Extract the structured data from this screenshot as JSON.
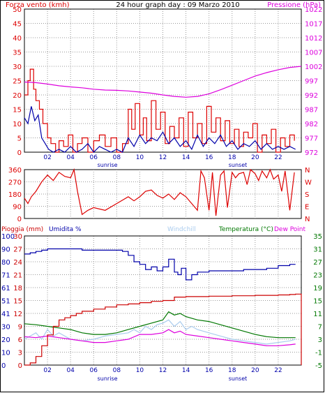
{
  "header": {
    "wind_title": "Forza vento (kmh)",
    "main_title": "24 hour graph day : 09 Marzo 2010",
    "pressure_title": "Pressione (hPa)"
  },
  "bottom_titles": {
    "rain": "Pioggia (mm)",
    "humidity": "Umidita %",
    "windchill": "Windchill",
    "temperature": "Temperatura (°C)",
    "dewpoint": "Dew Point"
  },
  "markers": {
    "sunrise": "sunrise",
    "sunset": "sunset"
  },
  "colors": {
    "wind": "#dd0000",
    "gust": "#dd0000",
    "avgwind": "#0000aa",
    "pressure": "#dd00dd",
    "direction": "#dd0000",
    "humidity": "#0000aa",
    "rain": "#cc0000",
    "temperature": "#007700",
    "dewpoint": "#dd00dd",
    "windchill": "#aaccee",
    "grid": "#999999",
    "border": "#000000"
  },
  "chart_data": [
    {
      "type": "line",
      "x_ticks": [
        "02",
        "04",
        "06",
        "08",
        "10",
        "12",
        "14",
        "16",
        "18",
        "20",
        "22"
      ],
      "xlim": [
        0,
        24
      ],
      "left_axis": {
        "label": "Forza vento (kmh)",
        "lim": [
          0,
          50
        ],
        "ticks": [
          "0",
          "5",
          "10",
          "15",
          "20",
          "25",
          "30",
          "35",
          "40",
          "45",
          "50"
        ]
      },
      "right_axis": {
        "label": "Pressione (hPa)",
        "lim": [
          972,
          1022
        ],
        "ticks": [
          "972",
          "977",
          "982",
          "987",
          "992",
          "997",
          "1002",
          "1007",
          "1012",
          "1017",
          "1022"
        ]
      },
      "series": [
        {
          "name": "Forza vento (kmh)",
          "axis": "left",
          "style": "step",
          "x": [
            0,
            0.3,
            0.5,
            0.8,
            1,
            1.3,
            1.6,
            2,
            2.3,
            2.7,
            3,
            3.4,
            3.8,
            4.2,
            4.6,
            5,
            5.5,
            6,
            6.5,
            7,
            7.5,
            8,
            8.5,
            9,
            9.3,
            9.6,
            10,
            10.3,
            10.6,
            11,
            11.4,
            11.8,
            12.2,
            12.6,
            13,
            13.4,
            13.8,
            14.2,
            14.6,
            15,
            15.4,
            15.8,
            16.2,
            16.6,
            17,
            17.4,
            17.8,
            18.2,
            18.6,
            19,
            19.4,
            19.8,
            20.2,
            20.6,
            21,
            21.4,
            21.8,
            22.2,
            22.6,
            23,
            23.4
          ],
          "y": [
            20,
            25,
            29,
            22,
            18,
            15,
            10,
            5,
            3,
            0,
            4,
            2,
            6,
            0,
            3,
            5,
            0,
            4,
            6,
            2,
            5,
            0,
            3,
            15,
            8,
            17,
            6,
            12,
            4,
            18,
            8,
            14,
            3,
            9,
            5,
            12,
            2,
            14,
            5,
            10,
            3,
            16,
            7,
            12,
            4,
            11,
            3,
            8,
            2,
            7,
            5,
            10,
            0,
            6,
            3,
            8,
            0,
            5,
            2,
            6,
            4
          ]
        },
        {
          "name": "Wind avg",
          "axis": "left",
          "style": "line",
          "x": [
            0,
            0.3,
            0.6,
            0.9,
            1.2,
            1.5,
            1.8,
            2.1,
            2.5,
            3,
            3.5,
            4,
            4.5,
            5,
            5.5,
            6,
            6.5,
            7,
            7.5,
            8,
            8.5,
            9,
            9.5,
            10,
            10.5,
            11,
            11.5,
            12,
            12.5,
            13,
            13.5,
            14,
            14.5,
            15,
            15.5,
            16,
            16.5,
            17,
            17.5,
            18,
            18.5,
            19,
            19.5,
            20,
            20.5,
            21,
            21.5,
            22,
            22.5,
            23,
            23.5
          ],
          "y": [
            12,
            10,
            16,
            11,
            13,
            5,
            3,
            1,
            0,
            1,
            0,
            2,
            0,
            1,
            3,
            0,
            2,
            1,
            0,
            1,
            0,
            5,
            2,
            6,
            3,
            5,
            4,
            7,
            3,
            5,
            2,
            4,
            1,
            6,
            2,
            5,
            3,
            6,
            2,
            4,
            1,
            3,
            2,
            4,
            1,
            3,
            1,
            2,
            1,
            2,
            1
          ]
        },
        {
          "name": "Pressione (hPa)",
          "axis": "right",
          "style": "line",
          "x": [
            0,
            1,
            2,
            3,
            4,
            5,
            6,
            7,
            8,
            9,
            10,
            11,
            12,
            13,
            14,
            15,
            16,
            17,
            18,
            19,
            20,
            21,
            22,
            23,
            24
          ],
          "y": [
            996.5,
            996.3,
            995.8,
            995.2,
            994.8,
            994.5,
            994.0,
            993.7,
            993.6,
            993.4,
            993.0,
            992.6,
            992.0,
            991.5,
            991.2,
            991.5,
            992.4,
            993.8,
            995.4,
            997.0,
            998.6,
            999.8,
            1000.8,
            1001.6,
            1002.0
          ]
        }
      ]
    },
    {
      "type": "line",
      "x_ticks": [
        "02",
        "04",
        "06",
        "08",
        "10",
        "12",
        "14",
        "16",
        "18",
        "20",
        "22"
      ],
      "xlim": [
        0,
        24
      ],
      "left_axis": {
        "lim": [
          0,
          360
        ],
        "ticks": [
          "0",
          "90",
          "180",
          "270",
          "360"
        ]
      },
      "right_axis": {
        "ticks": [
          "N",
          "E",
          "S",
          "W",
          "N"
        ]
      },
      "series": [
        {
          "name": "Direzione vento",
          "axis": "left",
          "style": "line",
          "x": [
            0,
            0.3,
            0.6,
            1,
            1.5,
            2,
            2.5,
            3,
            3.5,
            4,
            4.3,
            4.6,
            5,
            5.5,
            6,
            7,
            8,
            9,
            9.5,
            10,
            10.5,
            11,
            11.5,
            12,
            12.5,
            13,
            13.5,
            14,
            14.5,
            15,
            15.3,
            15.6,
            16,
            16.3,
            16.6,
            17,
            17.3,
            17.6,
            18,
            18.3,
            18.6,
            19,
            19.3,
            19.6,
            20,
            20.3,
            20.6,
            21,
            21.3,
            21.6,
            22,
            22.3,
            22.6,
            23,
            23.4
          ],
          "y": [
            150,
            110,
            160,
            200,
            270,
            320,
            280,
            340,
            310,
            300,
            360,
            200,
            30,
            60,
            80,
            60,
            110,
            160,
            130,
            160,
            200,
            210,
            170,
            150,
            180,
            140,
            190,
            160,
            110,
            60,
            350,
            300,
            60,
            340,
            20,
            320,
            350,
            80,
            340,
            300,
            330,
            340,
            250,
            360,
            330,
            280,
            350,
            300,
            360,
            290,
            320,
            200,
            350,
            60,
            340
          ]
        }
      ]
    },
    {
      "type": "line",
      "x_ticks": [
        "02",
        "04",
        "06",
        "08",
        "10",
        "12",
        "14",
        "16",
        "18",
        "20",
        "22"
      ],
      "xlim": [
        0,
        24
      ],
      "axis_rain": {
        "label": "Pioggia (mm)",
        "lim": [
          0,
          30
        ],
        "ticks": [
          "0",
          "3",
          "6",
          "9",
          "12",
          "15",
          "18",
          "21",
          "24",
          "27",
          "30"
        ]
      },
      "axis_humidity": {
        "label": "Umidita %",
        "lim": [
          0,
          100
        ],
        "ticks": [
          "0",
          "10",
          "20",
          "30",
          "41",
          "51",
          "61",
          "71",
          "80",
          "90",
          "100"
        ]
      },
      "axis_temp": {
        "label": "Temperatura (°C)",
        "lim": [
          -5,
          35
        ],
        "ticks": [
          "-5",
          "-1",
          "3",
          "7",
          "11",
          "15",
          "19",
          "23",
          "27",
          "31",
          "35"
        ]
      },
      "series": [
        {
          "name": "Umidita %",
          "axis": "humidity",
          "style": "step",
          "x": [
            0,
            0.5,
            1,
            1.5,
            2,
            3,
            4,
            5,
            6,
            7,
            8,
            8.5,
            9,
            9.5,
            10,
            10.5,
            11,
            11.5,
            12,
            12.5,
            13,
            13.3,
            13.6,
            14,
            14.5,
            15,
            16,
            17,
            18,
            19,
            20,
            21,
            22,
            23,
            23.5
          ],
          "y": [
            86,
            87,
            88,
            89,
            90,
            90,
            90,
            89,
            89,
            89,
            89,
            88,
            85,
            80,
            78,
            74,
            76,
            73,
            76,
            82,
            72,
            70,
            75,
            66,
            70,
            72,
            73,
            73,
            73,
            74,
            74,
            75,
            77,
            78,
            78
          ]
        },
        {
          "name": "Pioggia (mm)",
          "axis": "rain",
          "style": "step",
          "x": [
            0,
            0.5,
            1,
            1.5,
            2,
            2.5,
            3,
            3.5,
            4,
            4.5,
            5,
            6,
            7,
            8,
            9,
            10,
            11,
            12,
            13,
            14,
            16,
            18,
            20,
            22,
            23,
            23.5,
            23.9,
            24
          ],
          "y": [
            0,
            0.5,
            2,
            4.5,
            7,
            9,
            10.5,
            11,
            11.5,
            12,
            12.5,
            13,
            13.5,
            14,
            14.2,
            14.5,
            14.8,
            15,
            15.8,
            15.9,
            16,
            16.1,
            16.2,
            16.3,
            16.4,
            16.5,
            16.5,
            0
          ]
        },
        {
          "name": "Temperatura (°C)",
          "axis": "temp",
          "style": "line",
          "x": [
            0,
            1,
            2,
            3,
            4,
            5,
            6,
            7,
            8,
            9,
            10,
            11,
            12,
            12.5,
            13,
            13.5,
            14,
            15,
            16,
            17,
            18,
            19,
            20,
            21,
            22,
            23,
            23.5
          ],
          "y": [
            7.8,
            7.5,
            7,
            6.5,
            6,
            5,
            4.5,
            4.5,
            5,
            6,
            7,
            8,
            9,
            11.5,
            10.5,
            11,
            10,
            9,
            8.5,
            7.5,
            6.5,
            5.5,
            4.5,
            3.8,
            3.5,
            3.5,
            3.5
          ]
        },
        {
          "name": "Dew Point",
          "axis": "temp",
          "style": "line",
          "x": [
            0,
            1,
            2,
            3,
            4,
            5,
            6,
            7,
            8,
            9,
            10,
            11,
            12,
            12.5,
            13,
            13.5,
            14,
            15,
            16,
            17,
            18,
            19,
            20,
            21,
            22,
            23,
            23.5
          ],
          "y": [
            3.8,
            3.5,
            4,
            3.5,
            3,
            2.5,
            2,
            2,
            2.5,
            3,
            4.5,
            4.5,
            5,
            6,
            5,
            5.5,
            4.5,
            4,
            3.5,
            3,
            2.5,
            2,
            1.5,
            1,
            1,
            1.3,
            1.5
          ]
        },
        {
          "name": "Windchill",
          "axis": "temp",
          "style": "line",
          "x": [
            0,
            0.5,
            1,
            1.5,
            2,
            2.5,
            3,
            4,
            5,
            6,
            7,
            8,
            9,
            9.5,
            10,
            10.5,
            11,
            11.5,
            12,
            12.5,
            13,
            13.5,
            14,
            14.5,
            15,
            16,
            17,
            18,
            19,
            20,
            21,
            22,
            23,
            23.5
          ],
          "y": [
            3,
            4,
            5,
            3,
            6,
            4,
            5,
            3,
            2.5,
            3,
            4,
            4.5,
            5,
            6,
            5,
            7,
            6,
            7.5,
            8,
            9,
            7,
            8.5,
            6,
            7,
            6,
            5,
            4,
            3,
            2.5,
            2,
            1.5,
            2,
            2.5,
            3
          ]
        }
      ]
    }
  ]
}
